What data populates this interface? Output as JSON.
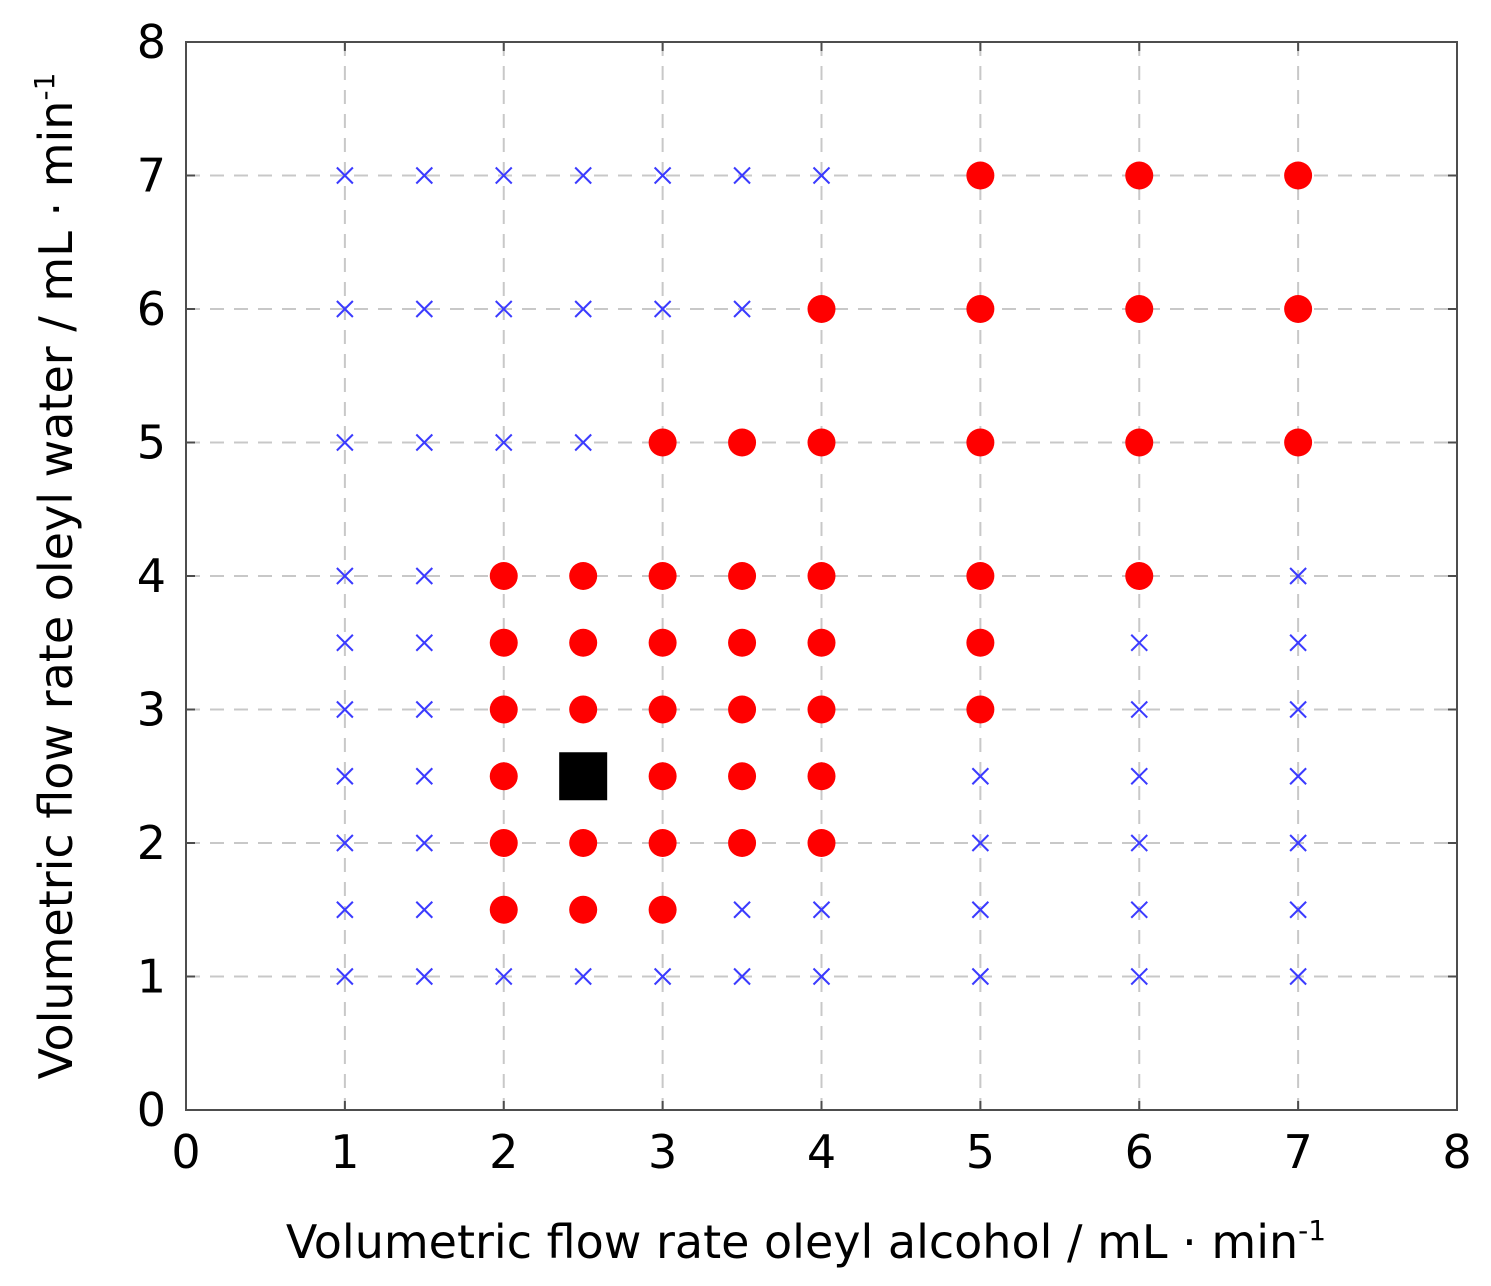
{
  "chart_data": {
    "type": "scatter",
    "title": "",
    "xlabel": "Volumetric flow rate oleyl alcohol / mL · min",
    "xlabel_sup": "-1",
    "ylabel": "Volumetric flow rate oleyl water / mL · min",
    "ylabel_sup": "-1",
    "xlim": [
      0,
      8
    ],
    "ylim": [
      0,
      8
    ],
    "xticks": [
      "0",
      "1",
      "2",
      "3",
      "4",
      "5",
      "6",
      "7",
      "8"
    ],
    "yticks": [
      "0",
      "1",
      "2",
      "3",
      "4",
      "5",
      "6",
      "7",
      "8"
    ],
    "grid": true,
    "colors": {
      "cross": "#3b3bff",
      "dot": "#ff0000",
      "square": "#000000",
      "grid": "#c8c8c8",
      "axis": "#4d4d4d"
    },
    "series": [
      {
        "name": "crosses",
        "marker": "x",
        "points": [
          [
            1,
            7
          ],
          [
            1.5,
            7
          ],
          [
            2,
            7
          ],
          [
            2.5,
            7
          ],
          [
            3,
            7
          ],
          [
            3.5,
            7
          ],
          [
            4,
            7
          ],
          [
            1,
            6
          ],
          [
            1.5,
            6
          ],
          [
            2,
            6
          ],
          [
            2.5,
            6
          ],
          [
            3,
            6
          ],
          [
            3.5,
            6
          ],
          [
            1,
            5
          ],
          [
            1.5,
            5
          ],
          [
            2,
            5
          ],
          [
            2.5,
            5
          ],
          [
            1,
            4
          ],
          [
            1.5,
            4
          ],
          [
            7,
            4
          ],
          [
            1,
            3.5
          ],
          [
            1.5,
            3.5
          ],
          [
            6,
            3.5
          ],
          [
            7,
            3.5
          ],
          [
            1,
            3
          ],
          [
            1.5,
            3
          ],
          [
            6,
            3
          ],
          [
            7,
            3
          ],
          [
            1,
            2.5
          ],
          [
            1.5,
            2.5
          ],
          [
            5,
            2.5
          ],
          [
            6,
            2.5
          ],
          [
            7,
            2.5
          ],
          [
            1,
            2
          ],
          [
            1.5,
            2
          ],
          [
            5,
            2
          ],
          [
            6,
            2
          ],
          [
            7,
            2
          ],
          [
            1,
            1.5
          ],
          [
            1.5,
            1.5
          ],
          [
            3.5,
            1.5
          ],
          [
            4,
            1.5
          ],
          [
            5,
            1.5
          ],
          [
            6,
            1.5
          ],
          [
            7,
            1.5
          ],
          [
            1,
            1
          ],
          [
            1.5,
            1
          ],
          [
            2,
            1
          ],
          [
            2.5,
            1
          ],
          [
            3,
            1
          ],
          [
            3.5,
            1
          ],
          [
            4,
            1
          ],
          [
            5,
            1
          ],
          [
            6,
            1
          ],
          [
            7,
            1
          ]
        ]
      },
      {
        "name": "dots",
        "marker": "o",
        "points": [
          [
            5,
            7
          ],
          [
            6,
            7
          ],
          [
            7,
            7
          ],
          [
            4,
            6
          ],
          [
            5,
            6
          ],
          [
            6,
            6
          ],
          [
            7,
            6
          ],
          [
            3,
            5
          ],
          [
            3.5,
            5
          ],
          [
            4,
            5
          ],
          [
            5,
            5
          ],
          [
            6,
            5
          ],
          [
            7,
            5
          ],
          [
            2,
            4
          ],
          [
            2.5,
            4
          ],
          [
            3,
            4
          ],
          [
            3.5,
            4
          ],
          [
            4,
            4
          ],
          [
            5,
            4
          ],
          [
            6,
            4
          ],
          [
            2,
            3.5
          ],
          [
            2.5,
            3.5
          ],
          [
            3,
            3.5
          ],
          [
            3.5,
            3.5
          ],
          [
            4,
            3.5
          ],
          [
            5,
            3.5
          ],
          [
            2,
            3
          ],
          [
            2.5,
            3
          ],
          [
            3,
            3
          ],
          [
            3.5,
            3
          ],
          [
            4,
            3
          ],
          [
            5,
            3
          ],
          [
            2,
            2.5
          ],
          [
            3,
            2.5
          ],
          [
            3.5,
            2.5
          ],
          [
            4,
            2.5
          ],
          [
            2,
            2
          ],
          [
            2.5,
            2
          ],
          [
            3,
            2
          ],
          [
            3.5,
            2
          ],
          [
            4,
            2
          ],
          [
            2,
            1.5
          ],
          [
            2.5,
            1.5
          ],
          [
            3,
            1.5
          ]
        ]
      },
      {
        "name": "square",
        "marker": "s",
        "points": [
          [
            2.5,
            2.5
          ]
        ]
      }
    ]
  }
}
